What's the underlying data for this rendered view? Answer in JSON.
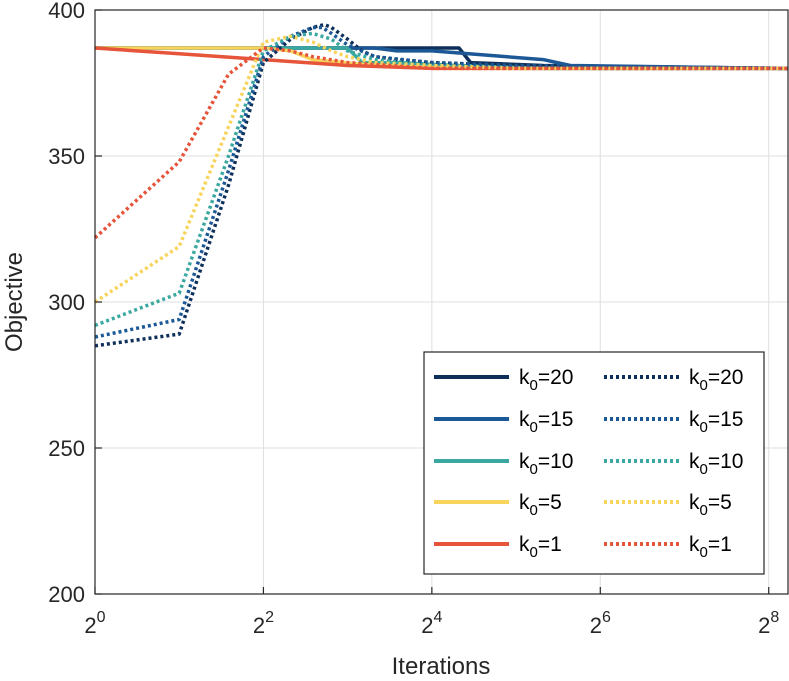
{
  "chart_data": {
    "type": "line",
    "xlabel": "Iterations",
    "ylabel": "Objective",
    "xscale": "log2",
    "xlim": [
      1,
      300
    ],
    "ylim": [
      200,
      400
    ],
    "yticks": [
      200,
      250,
      300,
      350,
      400
    ],
    "xticks": [
      {
        "value": 1,
        "base": "2",
        "exp": "0"
      },
      {
        "value": 4,
        "base": "2",
        "exp": "2"
      },
      {
        "value": 16,
        "base": "2",
        "exp": "4"
      },
      {
        "value": 64,
        "base": "2",
        "exp": "6"
      },
      {
        "value": 256,
        "base": "2",
        "exp": "8"
      }
    ],
    "grid": true,
    "legend": {
      "placement": "bottom-right",
      "columns": 2
    },
    "series": [
      {
        "name": "k0=20",
        "k": "20",
        "style": "solid",
        "color": "#0e2f5a",
        "x": [
          1,
          2,
          4,
          6,
          8,
          10,
          14,
          18,
          20,
          22,
          40,
          300
        ],
        "y": [
          387,
          387,
          387,
          387,
          387,
          387,
          387,
          387,
          387,
          382,
          381,
          380
        ]
      },
      {
        "name": "k0=15",
        "k": "15",
        "style": "solid",
        "color": "#1c5896",
        "x": [
          1,
          2,
          4,
          6,
          8,
          10,
          12,
          14,
          16,
          40,
          50,
          300
        ],
        "y": [
          387,
          387,
          387,
          387,
          387,
          387,
          386,
          386,
          386,
          383,
          381,
          380
        ]
      },
      {
        "name": "k0=10",
        "k": "10",
        "style": "solid",
        "color": "#3aa8a0",
        "x": [
          1,
          2,
          4,
          6,
          8,
          9,
          12,
          20,
          40,
          300
        ],
        "y": [
          387,
          387,
          387,
          387,
          387,
          382,
          382,
          381,
          380,
          380
        ]
      },
      {
        "name": "k0=5",
        "k": "5",
        "style": "solid",
        "color": "#f8d45d",
        "x": [
          1,
          2,
          4,
          5,
          6,
          10,
          20,
          300
        ],
        "y": [
          387,
          387,
          387,
          386,
          383,
          381,
          380,
          380
        ]
      },
      {
        "name": "k0=1",
        "k": "1",
        "style": "solid",
        "color": "#e6543a",
        "x": [
          1,
          2,
          4,
          8,
          16,
          32,
          300
        ],
        "y": [
          387,
          385,
          383,
          381,
          380,
          380,
          380
        ]
      },
      {
        "name": "k0=20",
        "k": "20",
        "style": "dotted",
        "color": "#0e2f5a",
        "x": [
          1,
          2,
          3,
          4,
          5,
          6,
          6.6,
          7,
          8,
          9,
          10,
          12,
          16,
          32,
          64,
          300
        ],
        "y": [
          285,
          289,
          340,
          382,
          390,
          394,
          395,
          394,
          390,
          386,
          384,
          383,
          382,
          381,
          380,
          380
        ]
      },
      {
        "name": "k0=15",
        "k": "15",
        "style": "dotted",
        "color": "#1c5896",
        "x": [
          1,
          2,
          3,
          4,
          5,
          6,
          6.5,
          7,
          8,
          10,
          16,
          32,
          300
        ],
        "y": [
          288,
          294,
          345,
          384,
          391,
          394,
          394,
          392,
          388,
          384,
          382,
          381,
          380
        ]
      },
      {
        "name": "k0=10",
        "k": "10",
        "style": "dotted",
        "color": "#3aa8a0",
        "x": [
          1,
          2,
          3,
          4,
          5,
          6,
          7,
          8,
          10,
          16,
          32,
          300
        ],
        "y": [
          292,
          303,
          350,
          386,
          391,
          392,
          390,
          386,
          383,
          381,
          380,
          380
        ]
      },
      {
        "name": "k0=5",
        "k": "5",
        "style": "dotted",
        "color": "#f8d45d",
        "x": [
          1,
          2,
          3,
          4,
          5,
          6,
          7,
          8,
          10,
          16,
          32,
          300
        ],
        "y": [
          300,
          319,
          360,
          389,
          391,
          389,
          386,
          384,
          382,
          381,
          380,
          380
        ]
      },
      {
        "name": "k0=1",
        "k": "1",
        "style": "dotted",
        "color": "#e6543a",
        "x": [
          1,
          2,
          3,
          4,
          5,
          6,
          8,
          16,
          300
        ],
        "y": [
          322,
          348,
          378,
          387,
          386,
          384,
          382,
          380,
          380
        ]
      }
    ]
  }
}
